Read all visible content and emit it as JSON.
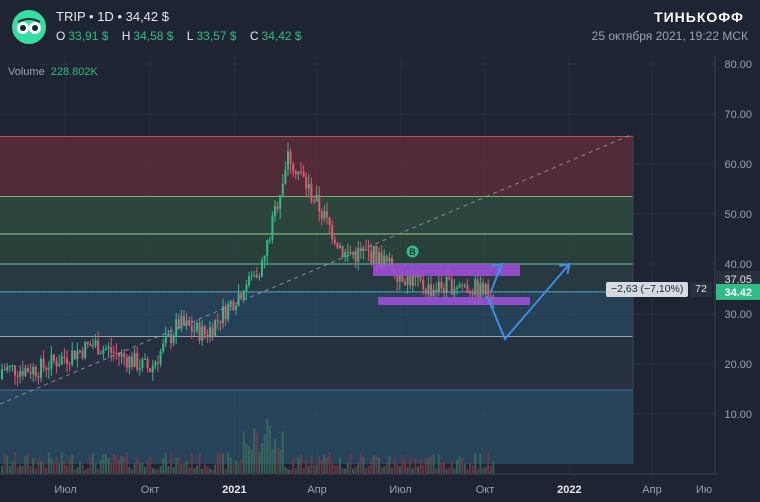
{
  "header": {
    "ticker": "TRIP",
    "interval": "1D",
    "last_price": "34,42 $",
    "ohlc": [
      {
        "key": "O",
        "value": "33,91 $"
      },
      {
        "key": "H",
        "value": "34,58 $"
      },
      {
        "key": "L",
        "value": "33,57 $"
      },
      {
        "key": "C",
        "value": "34,42 $"
      }
    ],
    "brand": "ТИНЬКОФФ",
    "datetime": "25 октября 2021, 19:22 МСК"
  },
  "volume_label": {
    "label": "Volume",
    "value": "228.802K"
  },
  "price_axis": {
    "ticks": [
      "80.00",
      "70.00",
      "60.00",
      "50.00",
      "40.00",
      "30.00",
      "20.00",
      "10.00"
    ],
    "current_price": "34.42",
    "marker_price": "37.05"
  },
  "time_axis": {
    "ticks": [
      "Июл",
      "Окт",
      "2021",
      "Апр",
      "Июл",
      "Окт",
      "2022",
      "Апр",
      "Ию"
    ]
  },
  "measure": {
    "text": "−2,63 (−7,10%)",
    "bars": "72"
  },
  "marker": {
    "letter": "B"
  },
  "icons": {
    "logo": "tripadvisor-owl-icon"
  },
  "colors": {
    "background": "#1f2433",
    "up": "#2ebd85",
    "down": "#f0506e",
    "fib_red": "#5a2d3a",
    "fib_green": "#2e4a3e",
    "fib_blue": "#2a4a63",
    "rect_purple": "#9b4fd6",
    "arrow_blue": "#3d8fe6"
  },
  "chart_data": {
    "type": "candlestick",
    "ylim": [
      0,
      80
    ],
    "x_range": [
      "2020-06",
      "2022-06"
    ],
    "fib_levels": [
      65.5,
      53.5,
      46,
      40,
      34.42,
      25.5,
      14.8,
      0
    ],
    "price_path": [
      {
        "date": "2020-06",
        "close": 19
      },
      {
        "date": "2020-08",
        "close": 24
      },
      {
        "date": "2020-10",
        "close": 19
      },
      {
        "date": "2020-11",
        "close": 28
      },
      {
        "date": "2020-12",
        "close": 26
      },
      {
        "date": "2021-01",
        "close": 33
      },
      {
        "date": "2021-02",
        "close": 40
      },
      {
        "date": "2021-03",
        "close": 62
      },
      {
        "date": "2021-04",
        "close": 52
      },
      {
        "date": "2021-05",
        "close": 42
      },
      {
        "date": "2021-06",
        "close": 42
      },
      {
        "date": "2021-07",
        "close": 38
      },
      {
        "date": "2021-08",
        "close": 35
      },
      {
        "date": "2021-09",
        "close": 36
      },
      {
        "date": "2021-10",
        "close": 34.42
      }
    ],
    "projection": [
      {
        "date": "2021-10",
        "value": 34.42
      },
      {
        "date": "2021-11",
        "value": 40
      },
      {
        "date": "2021-11",
        "value": 25
      },
      {
        "date": "2022-01",
        "value": 40
      }
    ]
  }
}
